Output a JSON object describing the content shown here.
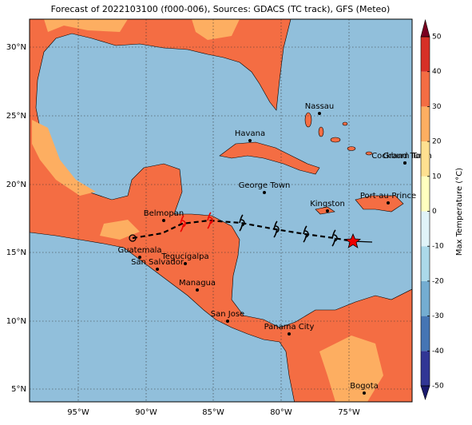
{
  "map": {
    "title": "Forecast of 2022103100 (f000-006), Sources: GDACS (TC track), GFS (Meteo)",
    "lat_labels": [
      "30°N",
      "25°N",
      "20°N",
      "15°N",
      "10°N",
      "5°N"
    ],
    "lon_labels": [
      "95°W",
      "90°W",
      "85°W",
      "80°W",
      "75°W"
    ],
    "cities": [
      "Nassau",
      "Havana",
      "Cockburn Town",
      "Grand Turk",
      "George Town",
      "Kingston",
      "Port-au-Prince",
      "Belmopan",
      "Guatemala",
      "San Salvador",
      "Tegucigalpa",
      "Managua",
      "San Jose",
      "Panama City",
      "Bogota"
    ],
    "colorbar": {
      "label": "Max Temperature (°C)",
      "ticks": [
        -50,
        -40,
        -30,
        -20,
        -10,
        0,
        10,
        20,
        30,
        40,
        50
      ]
    }
  }
}
